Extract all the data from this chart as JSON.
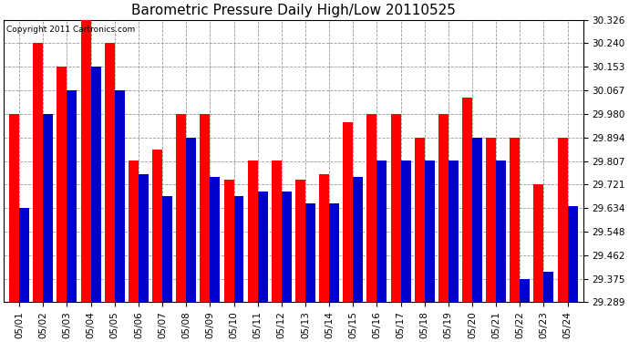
{
  "title": "Barometric Pressure Daily High/Low 20110525",
  "copyright_text": "Copyright 2011 Cartronics.com",
  "days": [
    "05/01",
    "05/02",
    "05/03",
    "05/04",
    "05/05",
    "05/06",
    "05/07",
    "05/08",
    "05/09",
    "05/10",
    "05/11",
    "05/12",
    "05/13",
    "05/14",
    "05/15",
    "05/16",
    "05/17",
    "05/18",
    "05/19",
    "05/20",
    "05/21",
    "05/22",
    "05/23",
    "05/24"
  ],
  "highs": [
    29.98,
    30.24,
    30.153,
    30.326,
    30.24,
    29.808,
    29.85,
    29.98,
    29.98,
    29.74,
    29.808,
    29.808,
    29.74,
    29.76,
    29.95,
    29.98,
    29.98,
    29.894,
    29.98,
    30.04,
    29.894,
    29.894,
    29.721,
    29.894
  ],
  "lows": [
    29.634,
    29.98,
    30.067,
    30.153,
    30.067,
    29.76,
    29.68,
    29.894,
    29.75,
    29.68,
    29.694,
    29.694,
    29.65,
    29.65,
    29.75,
    29.808,
    29.808,
    29.808,
    29.808,
    29.894,
    29.808,
    29.375,
    29.4,
    29.64
  ],
  "ylim_min": 29.289,
  "ylim_max": 30.326,
  "yticks": [
    29.289,
    29.375,
    29.462,
    29.548,
    29.634,
    29.721,
    29.807,
    29.894,
    29.98,
    30.067,
    30.153,
    30.24,
    30.326
  ],
  "high_color": "#ff0000",
  "low_color": "#0000cc",
  "bg_color": "#ffffff",
  "grid_color": "#999999",
  "title_fontsize": 11,
  "tick_fontsize": 7.5,
  "bar_width": 0.42
}
